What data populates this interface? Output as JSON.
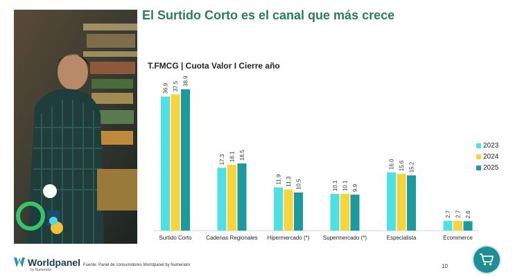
{
  "slide": {
    "title": "El Surtido Corto es el canal que más crece",
    "subtitle": "T.FMCG | Cuota Valor I Cierre año",
    "source": "Fuente: Panel de consumidores Worldpanel by Numerator",
    "page_number": "10",
    "brand": "Worldpanel",
    "brand_by": "by Numerator"
  },
  "colors": {
    "series_2023": "#4fe0e3",
    "series_2024": "#f7d43a",
    "series_2025": "#1c9aa0",
    "title": "#2a7d5a",
    "cart_bg": "#1f8f96"
  },
  "icons": [
    "shopping-cart-icon",
    "worldpanel-logo-icon"
  ],
  "chart_data": {
    "type": "bar",
    "categories": [
      "Surtido Corto",
      "Cadenas Regionales",
      "Hipermercado (*)",
      "Supermercado (*)",
      "Especialista",
      "Ecommerce"
    ],
    "series": [
      {
        "name": "2023",
        "values": [
          36.9,
          17.3,
          11.9,
          10.1,
          16.0,
          2.7
        ]
      },
      {
        "name": "2024",
        "values": [
          37.5,
          18.1,
          11.3,
          10.1,
          15.6,
          2.7
        ]
      },
      {
        "name": "2025",
        "values": [
          38.9,
          18.5,
          10.5,
          9.9,
          15.2,
          2.6
        ]
      }
    ],
    "value_labels": [
      [
        "36.9",
        "17.3",
        "11.9",
        "10.1",
        "16.0",
        "2.7"
      ],
      [
        "37.5",
        "18.1",
        "11.3",
        "10.1",
        "15.6",
        "2.7"
      ],
      [
        "38.9",
        "18.5",
        "10.5",
        "9.9",
        "15.2",
        "2.6"
      ]
    ],
    "legend_position": "right",
    "ylim": [
      0,
      40
    ],
    "grid": false
  }
}
